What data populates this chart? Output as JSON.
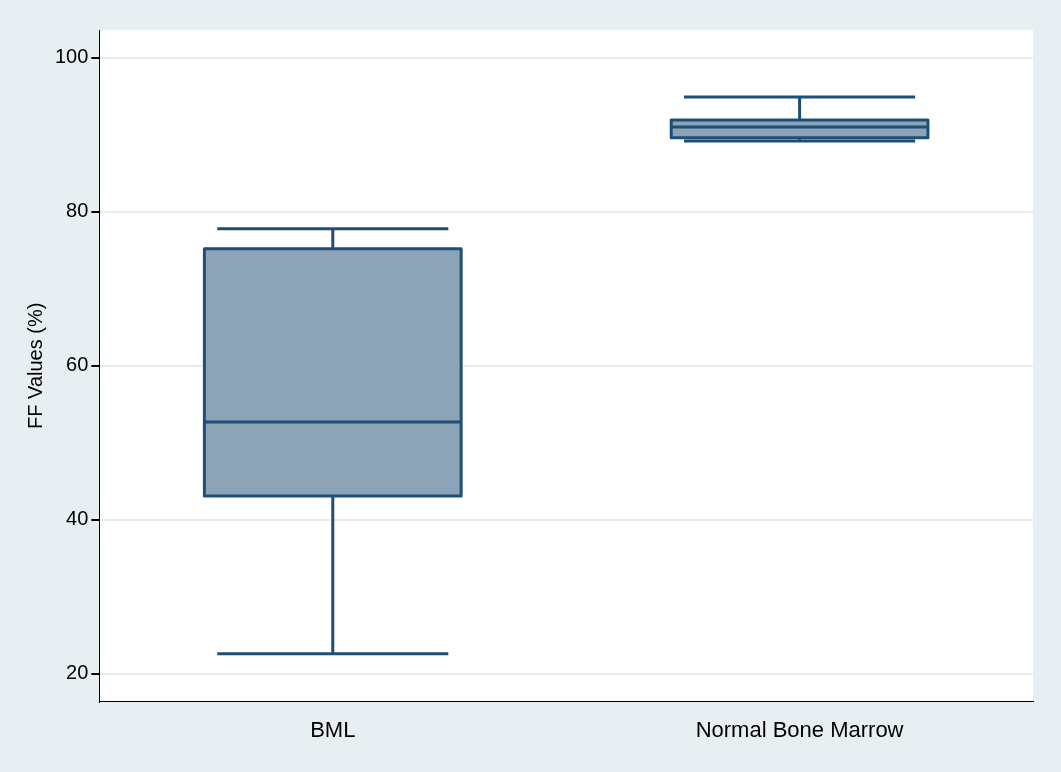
{
  "chart_data": {
    "type": "box",
    "ylabel": "FF Values (%)",
    "categories": [
      "BML",
      "Normal Bone Marrow"
    ],
    "series": [
      {
        "color": "#8da3b7",
        "boxes": [
          {
            "low": 22.6,
            "q1": 43.1,
            "median": 52.7,
            "q3": 75.2,
            "high": 77.8
          },
          {
            "low": 89.2,
            "q1": 89.6,
            "median": 91.0,
            "q3": 91.9,
            "high": 94.9
          }
        ]
      }
    ],
    "ylim": [
      16.4,
      103.6
    ],
    "yticks": [
      20,
      40,
      60,
      80,
      100
    ],
    "grid": "y",
    "legend": false
  }
}
